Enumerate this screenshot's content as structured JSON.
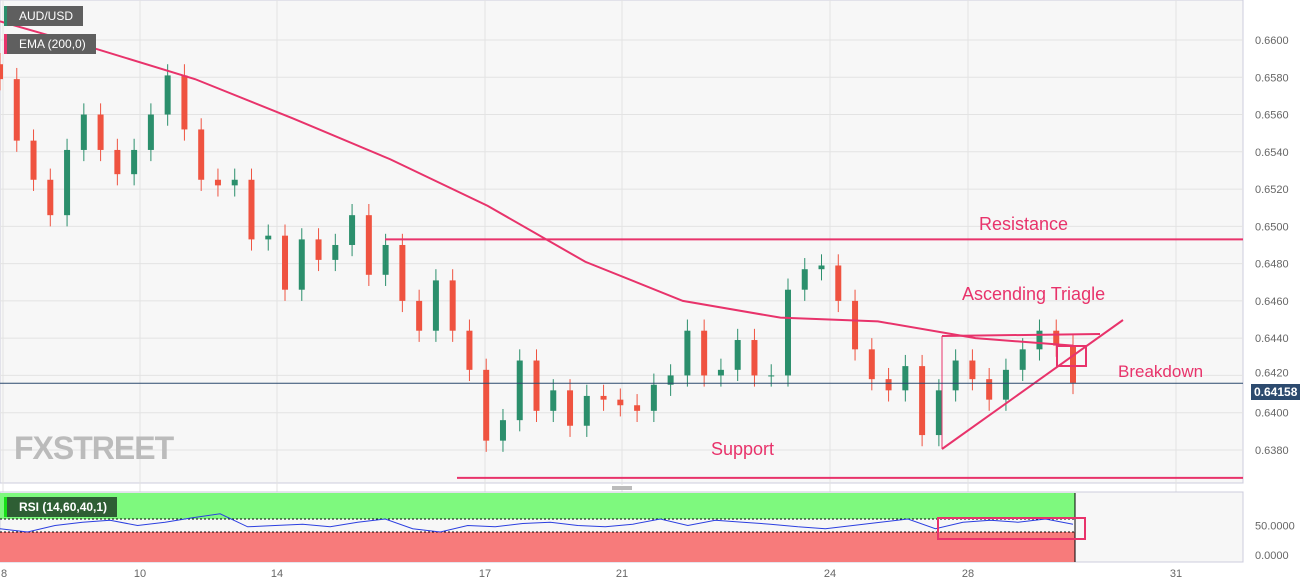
{
  "symbol": "AUD/USD",
  "indicator": "EMA (200,0)",
  "rsi_label": "RSI (14,60,40,1)",
  "watermark": "FXSTREET",
  "colors": {
    "up": "#2b8f6c",
    "down": "#ef5340",
    "ema": "#e8336b",
    "annotation": "#e8336b",
    "rsi_line": "#2b3fe0",
    "rsi_upper": "#7ef97e",
    "rsi_lower": "#f77b7b",
    "price_tag": "#2c4a6e"
  },
  "chart_data": {
    "type": "candlestick",
    "x_ticks": [
      "8",
      "10",
      "14",
      "17",
      "21",
      "24",
      "28",
      "31"
    ],
    "y_ticks": [
      "0.6380",
      "0.6400",
      "0.6420",
      "0.6440",
      "0.6460",
      "0.6480",
      "0.6500",
      "0.6520",
      "0.6540",
      "0.6560",
      "0.6580",
      "0.6600"
    ],
    "ylim": [
      0.6365,
      0.662
    ],
    "last_price": "0.64158",
    "closes": [
      0.6579,
      0.6546,
      0.6525,
      0.6506,
      0.6541,
      0.656,
      0.6541,
      0.6528,
      0.6541,
      0.656,
      0.6581,
      0.6552,
      0.6525,
      0.6522,
      0.6525,
      0.6493,
      0.6495,
      0.6466,
      0.6493,
      0.6482,
      0.649,
      0.6506,
      0.6474,
      0.649,
      0.646,
      0.6444,
      0.6471,
      0.6444,
      0.6423,
      0.6385,
      0.6396,
      0.6428,
      0.6401,
      0.6412,
      0.6393,
      0.6409,
      0.6407,
      0.6404,
      0.6401,
      0.6415,
      0.642,
      0.6444,
      0.642,
      0.6423,
      0.6439,
      0.642,
      0.642,
      0.6466,
      0.6477,
      0.6479,
      0.646,
      0.6434,
      0.6418,
      0.6412,
      0.6425,
      0.6388,
      0.6412,
      0.6428,
      0.6418,
      0.6407,
      0.6423,
      0.6434,
      0.6444,
      0.6436,
      0.6416
    ],
    "ema": [
      0.661,
      0.6595,
      0.6579,
      0.6558,
      0.6536,
      0.6511,
      0.6481,
      0.646,
      0.6451,
      0.6449,
      0.644,
      0.6436
    ],
    "rsi": {
      "ticks": [
        "50.0000",
        "0.0000"
      ],
      "upper": 60,
      "lower": 40,
      "values": [
        45,
        40,
        50,
        55,
        58,
        50,
        55,
        62,
        68,
        48,
        50,
        52,
        48,
        55,
        60,
        45,
        40,
        50,
        48,
        53,
        55,
        50,
        48,
        52,
        60,
        50,
        58,
        55,
        52,
        48,
        45,
        50,
        55,
        60,
        45,
        55,
        58,
        55,
        60,
        52
      ]
    },
    "annotations": {
      "resistance": "Resistance",
      "resistance_level": 0.6493,
      "support": "Support",
      "support_level": 0.6365,
      "pattern": "Ascending Triagle",
      "breakdown": "Breakdown"
    }
  }
}
